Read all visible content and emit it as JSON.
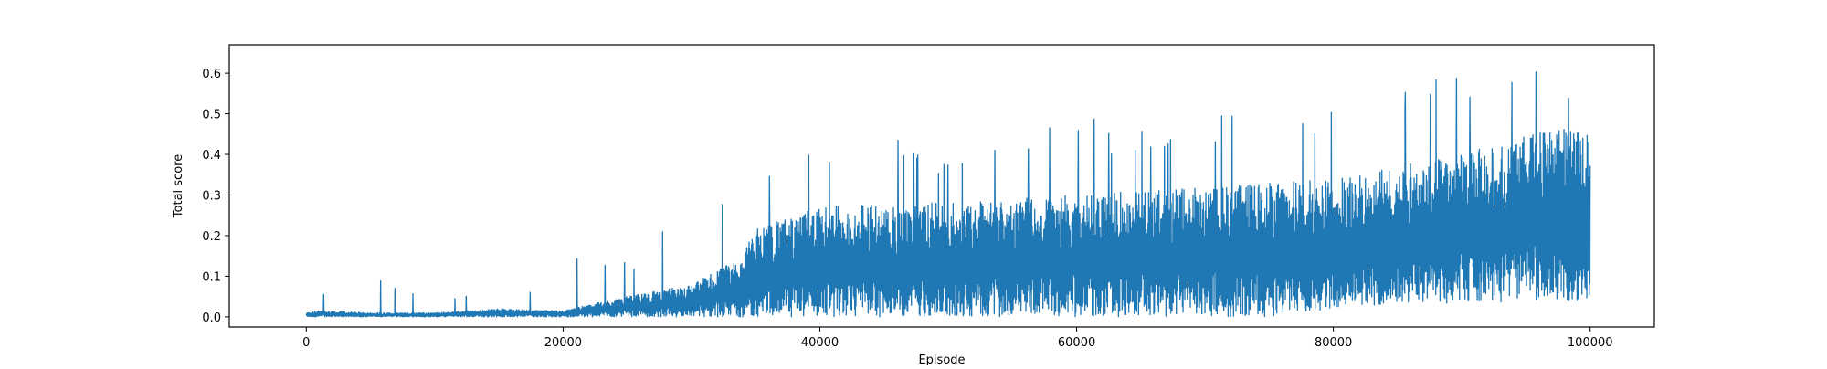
{
  "chart_data": {
    "type": "line",
    "title": "",
    "xlabel": "Episode",
    "ylabel": "Total score",
    "xlim": [
      -6000,
      105000
    ],
    "ylim": [
      -0.025,
      0.67
    ],
    "grid": false,
    "legend": "none",
    "color": "#1f77b4",
    "x_ticks": [
      0,
      20000,
      40000,
      60000,
      80000,
      100000
    ],
    "x_tick_labels": [
      "0",
      "20000",
      "40000",
      "60000",
      "80000",
      "100000"
    ],
    "y_ticks": [
      0.0,
      0.1,
      0.2,
      0.3,
      0.4,
      0.5,
      0.6
    ],
    "y_tick_labels": [
      "0.0",
      "0.1",
      "0.2",
      "0.3",
      "0.4",
      "0.5",
      "0.6"
    ],
    "series": [
      {
        "x": [
          0,
          1000,
          5000,
          10000,
          15000,
          20000,
          22000,
          25000,
          30000,
          34000,
          35000,
          40000,
          45000,
          50000,
          55000,
          60000,
          65000,
          70000,
          75000,
          80000,
          85000,
          90000,
          95000,
          100000
        ],
        "y_min": [
          0.0,
          0.0,
          0.0,
          0.0,
          0.0,
          0.0,
          0.0,
          0.0,
          0.0,
          0.0,
          0.0,
          0.0,
          0.0,
          0.0,
          0.0,
          0.0,
          0.0,
          0.0,
          0.0,
          0.02,
          0.03,
          0.03,
          0.04,
          0.04
        ],
        "y_typical_max": [
          0.01,
          0.015,
          0.01,
          0.01,
          0.02,
          0.015,
          0.03,
          0.05,
          0.08,
          0.15,
          0.22,
          0.27,
          0.28,
          0.28,
          0.29,
          0.3,
          0.31,
          0.32,
          0.33,
          0.34,
          0.37,
          0.4,
          0.45,
          0.47
        ],
        "y_peak": [
          0.01,
          0.07,
          0.14,
          0.04,
          0.085,
          0.12,
          0.22,
          0.16,
          0.29,
          0.37,
          0.35,
          0.44,
          0.46,
          0.39,
          0.48,
          0.5,
          0.47,
          0.5,
          0.5,
          0.52,
          0.56,
          0.61,
          0.64,
          0.55
        ]
      }
    ]
  }
}
